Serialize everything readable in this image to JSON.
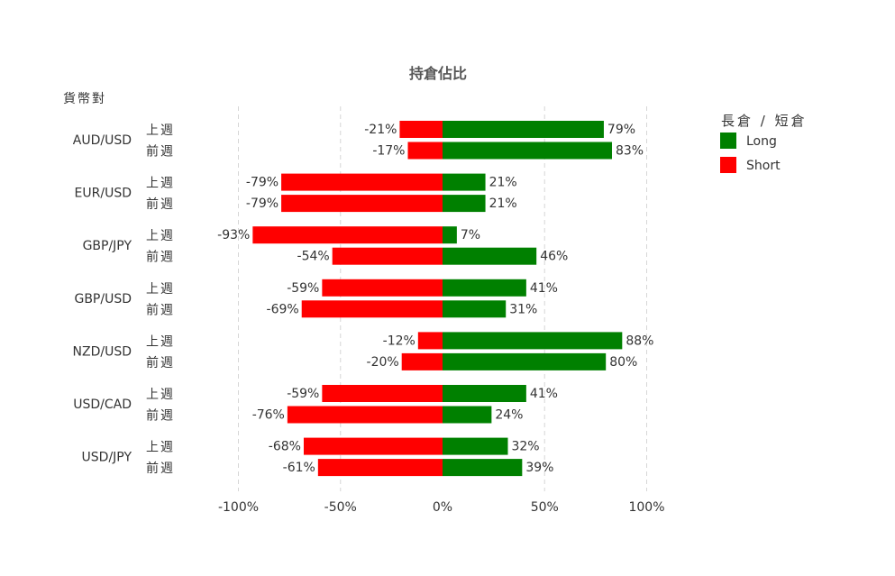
{
  "chart_data": {
    "type": "bar",
    "orientation": "horizontal-diverging",
    "title": "持倉佔比",
    "ylabel": "貨幣對",
    "xlim": [
      -100,
      100
    ],
    "xticks": [
      "-100%",
      "-50%",
      "0%",
      "50%",
      "100%"
    ],
    "tick_values": [
      -100,
      -50,
      0,
      50,
      100
    ],
    "grid": true,
    "period_labels": [
      "上週",
      "前週"
    ],
    "legend": {
      "title": "長倉 / 短倉",
      "placement": "right",
      "entries": [
        {
          "name": "Long",
          "color": "#008000"
        },
        {
          "name": "Short",
          "color": "#ff0000"
        }
      ]
    },
    "categories": [
      "AUD/USD",
      "EUR/USD",
      "GBP/JPY",
      "GBP/USD",
      "NZD/USD",
      "USD/CAD",
      "USD/JPY"
    ],
    "series": [
      {
        "name": "Long",
        "period": "上週",
        "values": [
          79,
          21,
          7,
          41,
          88,
          41,
          32
        ]
      },
      {
        "name": "Short",
        "period": "上週",
        "values": [
          -21,
          -79,
          -93,
          -59,
          -12,
          -59,
          -68
        ]
      },
      {
        "name": "Long",
        "period": "前週",
        "values": [
          83,
          21,
          46,
          31,
          80,
          24,
          39
        ]
      },
      {
        "name": "Short",
        "period": "前週",
        "values": [
          -17,
          -79,
          -54,
          -69,
          -20,
          -76,
          -61
        ]
      }
    ]
  }
}
